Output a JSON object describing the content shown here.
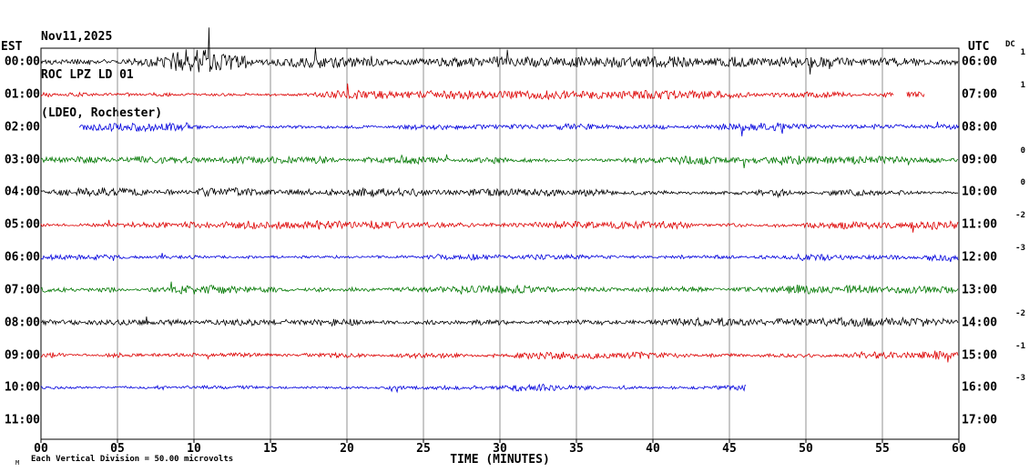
{
  "title": {
    "line1": "Nov11,2025",
    "line2": "ROC LPZ LD 01",
    "line3": "(LDEO, Rochester)"
  },
  "axes": {
    "left_header": "EST",
    "right_header": "UTC",
    "dc_header": "DC",
    "x_label": "TIME (MINUTES)",
    "x_ticks": [
      "00",
      "05",
      "10",
      "15",
      "20",
      "25",
      "30",
      "35",
      "40",
      "45",
      "50",
      "55",
      "60"
    ],
    "x_range": [
      0,
      60
    ],
    "grid": true
  },
  "footnote": "Each Vertical Division =  50.00 microvolts",
  "corner_glyph": "M",
  "colors": {
    "black": "#000000",
    "red": "#dd0000",
    "blue": "#0000dd",
    "green": "#007700",
    "grid": "#909090",
    "frame": "#000000"
  },
  "chart_data": {
    "type": "line",
    "description": "Helicorder seismogram: 12 hourly rows, each a 60-minute continuous noise trace; vertical division = 50.00 microvolts",
    "station": "ROC LPZ LD 01",
    "network": "(LDEO, Rochester)",
    "date": "Nov11,2025",
    "x_unit": "minutes",
    "x_range": [
      0,
      60
    ],
    "rows": [
      {
        "est": "00:00",
        "utc": "06:00",
        "dc": "1",
        "color": "black",
        "amp": 1.4,
        "segments": [
          [
            0,
            60
          ]
        ],
        "bursts": [
          {
            "from": 8.5,
            "to": 13.5,
            "gain": 2.2
          }
        ]
      },
      {
        "est": "01:00",
        "utc": "07:00",
        "dc": "1",
        "color": "red",
        "amp": 1.1,
        "segments": [
          [
            0,
            55.8
          ],
          [
            56.6,
            57.8
          ]
        ],
        "bursts": []
      },
      {
        "est": "02:00",
        "utc": "08:00",
        "dc": "",
        "color": "blue",
        "amp": 1.0,
        "segments": [
          [
            2.5,
            60
          ]
        ],
        "bursts": []
      },
      {
        "est": "03:00",
        "utc": "09:00",
        "dc": "0",
        "color": "green",
        "amp": 1.1,
        "segments": [
          [
            0,
            60
          ]
        ],
        "bursts": []
      },
      {
        "est": "04:00",
        "utc": "10:00",
        "dc": "0",
        "color": "black",
        "amp": 1.1,
        "segments": [
          [
            0,
            60
          ]
        ],
        "bursts": [
          {
            "from": 47.5,
            "to": 49.0,
            "gain": 1.8
          }
        ]
      },
      {
        "est": "05:00",
        "utc": "11:00",
        "dc": "-2",
        "color": "red",
        "amp": 1.1,
        "segments": [
          [
            0,
            60
          ]
        ],
        "bursts": []
      },
      {
        "est": "06:00",
        "utc": "12:00",
        "dc": "-3",
        "color": "blue",
        "amp": 1.0,
        "segments": [
          [
            0,
            60
          ]
        ],
        "bursts": []
      },
      {
        "est": "07:00",
        "utc": "13:00",
        "dc": "",
        "color": "green",
        "amp": 1.2,
        "segments": [
          [
            0,
            60
          ]
        ],
        "bursts": []
      },
      {
        "est": "08:00",
        "utc": "14:00",
        "dc": "-2",
        "color": "black",
        "amp": 1.1,
        "segments": [
          [
            0,
            60
          ]
        ],
        "bursts": []
      },
      {
        "est": "09:00",
        "utc": "15:00",
        "dc": "-1",
        "color": "red",
        "amp": 1.1,
        "segments": [
          [
            0,
            60
          ]
        ],
        "bursts": []
      },
      {
        "est": "10:00",
        "utc": "16:00",
        "dc": "-3",
        "color": "blue",
        "amp": 0.9,
        "segments": [
          [
            0,
            46.1
          ]
        ],
        "bursts": []
      },
      {
        "est": "11:00",
        "utc": "17:00",
        "dc": "",
        "color": "green",
        "amp": 0.0,
        "segments": [],
        "bursts": []
      }
    ]
  }
}
